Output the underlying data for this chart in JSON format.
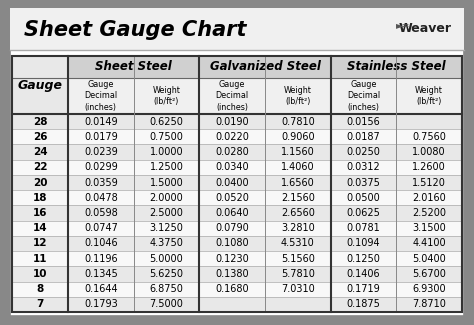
{
  "title": "Sheet Gauge Chart",
  "bg_outer": "#888888",
  "bg_white": "#ffffff",
  "bg_title": "#f0f0f0",
  "bg_header_group": "#cccccc",
  "bg_header_sub": "#e8e8e8",
  "bg_gauge_header": "#e0e0e0",
  "bg_row_odd": "#e8e8e8",
  "bg_row_even": "#f8f8f8",
  "border_color": "#555555",
  "border_thick": "#333333",
  "gauges": [
    28,
    26,
    24,
    22,
    20,
    18,
    16,
    14,
    12,
    11,
    10,
    8,
    7
  ],
  "sheet_steel_decimal": [
    "0.0149",
    "0.0179",
    "0.0239",
    "0.0299",
    "0.0359",
    "0.0478",
    "0.0598",
    "0.0747",
    "0.1046",
    "0.1196",
    "0.1345",
    "0.1644",
    "0.1793"
  ],
  "sheet_steel_weight": [
    "0.6250",
    "0.7500",
    "1.0000",
    "1.2500",
    "1.5000",
    "2.0000",
    "2.5000",
    "3.1250",
    "4.3750",
    "5.0000",
    "5.6250",
    "6.8750",
    "7.5000"
  ],
  "galv_decimal": [
    "0.0190",
    "0.0220",
    "0.0280",
    "0.0340",
    "0.0400",
    "0.0520",
    "0.0640",
    "0.0790",
    "0.1080",
    "0.1230",
    "0.1380",
    "0.1680",
    ""
  ],
  "galv_weight": [
    "0.7810",
    "0.9060",
    "1.1560",
    "1.4060",
    "1.6560",
    "2.1560",
    "2.6560",
    "3.2810",
    "4.5310",
    "5.1560",
    "5.7810",
    "7.0310",
    ""
  ],
  "stain_decimal": [
    "0.0156",
    "0.0187",
    "0.0250",
    "0.0312",
    "0.0375",
    "0.0500",
    "0.0625",
    "0.0781",
    "0.1094",
    "0.1250",
    "0.1406",
    "0.1719",
    "0.1875"
  ],
  "stain_weight": [
    "",
    "0.7560",
    "1.0080",
    "1.2600",
    "1.5120",
    "2.0160",
    "2.5200",
    "3.1500",
    "4.4100",
    "5.0400",
    "5.6700",
    "6.9300",
    "7.8710"
  ]
}
